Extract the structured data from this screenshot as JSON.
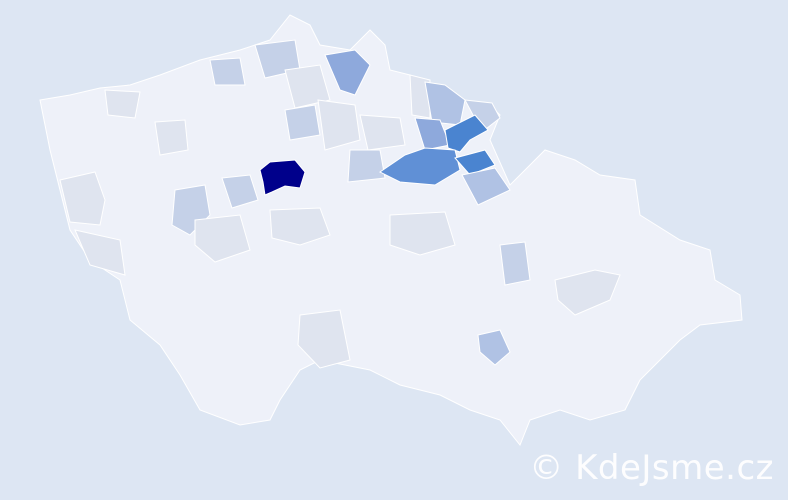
{
  "watermark": "© KdeJsme.cz",
  "colors": {
    "background": "#dde6f3",
    "base": "#eef1f9",
    "light": "#dfe4ef",
    "pale_blue": "#c5d1e8",
    "mid_blue": "#8ea9dc",
    "blue": "#6090d6",
    "strong_blue": "#4a84d0",
    "highest": "#00008b"
  }
}
